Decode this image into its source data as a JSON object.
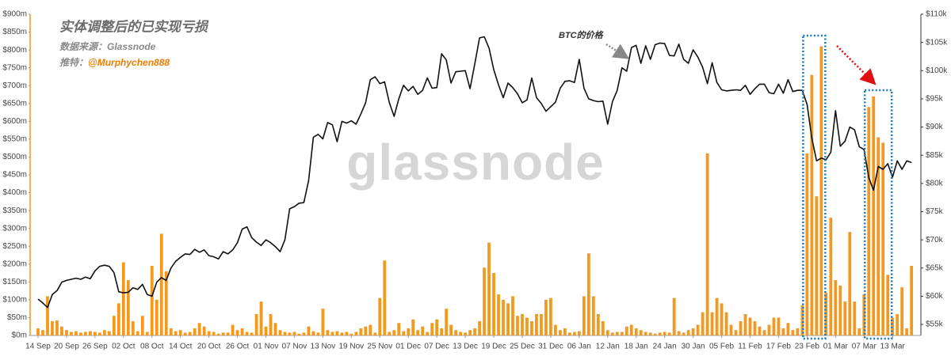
{
  "chart_data": {
    "type": "bar",
    "title": "实体调整后的已实现亏损",
    "annotations": {
      "source": "数据来源：Glassnode",
      "twitter_label": "推特：",
      "twitter_handle": "@Murphychen888",
      "price_label": "BTC的价格",
      "watermark": "glassnode"
    },
    "categories": [
      "14 Sep",
      null,
      null,
      null,
      null,
      null,
      "20 Sep",
      null,
      null,
      null,
      null,
      null,
      "26 Sep",
      null,
      null,
      null,
      null,
      null,
      "02 Oct",
      null,
      null,
      null,
      null,
      null,
      "08 Oct",
      null,
      null,
      null,
      null,
      null,
      "14 Oct",
      null,
      null,
      null,
      null,
      null,
      "20 Oct",
      null,
      null,
      null,
      null,
      null,
      "26 Oct",
      null,
      null,
      null,
      null,
      null,
      "01 Nov",
      null,
      null,
      null,
      null,
      null,
      "07 Nov",
      null,
      null,
      null,
      null,
      null,
      "13 Nov",
      null,
      null,
      null,
      null,
      null,
      "19 Nov",
      null,
      null,
      null,
      null,
      null,
      "25 Nov",
      null,
      null,
      null,
      null,
      null,
      "01 Dec",
      null,
      null,
      null,
      null,
      null,
      "07 Dec",
      null,
      null,
      null,
      null,
      null,
      "13 Dec",
      null,
      null,
      null,
      null,
      null,
      "19 Dec",
      null,
      null,
      null,
      null,
      null,
      "25 Dec",
      null,
      null,
      null,
      null,
      null,
      "31 Dec",
      null,
      null,
      null,
      null,
      null,
      "06 Jan",
      null,
      null,
      null,
      null,
      null,
      "12 Jan",
      null,
      null,
      null,
      null,
      null,
      "18 Jan",
      null,
      null,
      null,
      null,
      null,
      "24 Jan",
      null,
      null,
      null,
      null,
      null,
      "30 Jan",
      null,
      null,
      null,
      null,
      null,
      "05 Feb",
      null,
      null,
      null,
      null,
      null,
      "11 Feb",
      null,
      null,
      null,
      null,
      null,
      "17 Feb",
      null,
      null,
      null,
      null,
      null,
      "23 Feb",
      null,
      null,
      null,
      null,
      null,
      "01 Mar",
      null,
      null,
      null,
      null,
      null,
      "07 Mar",
      null,
      null,
      null,
      null,
      null,
      "13 Mar",
      null,
      null,
      null,
      null
    ],
    "series": [
      {
        "type": "bar",
        "color": "#f39a1e",
        "values": [
          20,
          15,
          110,
          40,
          42,
          25,
          15,
          10,
          12,
          8,
          10,
          12,
          10,
          8,
          15,
          12,
          55,
          90,
          205,
          155,
          40,
          12,
          55,
          10,
          195,
          100,
          285,
          180,
          20,
          12,
          15,
          8,
          10,
          20,
          35,
          25,
          12,
          10,
          5,
          8,
          8,
          30,
          15,
          20,
          10,
          8,
          60,
          95,
          25,
          60,
          35,
          15,
          10,
          8,
          10,
          5,
          8,
          25,
          12,
          8,
          75,
          15,
          10,
          12,
          8,
          10,
          5,
          10,
          20,
          25,
          30,
          8,
          105,
          210,
          10,
          15,
          35,
          12,
          20,
          45,
          15,
          25,
          10,
          35,
          45,
          20,
          75,
          30,
          15,
          10,
          8,
          15,
          20,
          40,
          190,
          260,
          175,
          115,
          100,
          90,
          110,
          55,
          60,
          50,
          40,
          60,
          60,
          100,
          105,
          30,
          15,
          20,
          8,
          10,
          12,
          110,
          230,
          110,
          60,
          40,
          15,
          8,
          10,
          10,
          25,
          30,
          20,
          15,
          10,
          8,
          5,
          8,
          10,
          8,
          105,
          12,
          8,
          15,
          20,
          30,
          65,
          510,
          65,
          105,
          90,
          65,
          30,
          15,
          40,
          60,
          50,
          40,
          25,
          15,
          30,
          50,
          50,
          20,
          35,
          15,
          20,
          85,
          510,
          730,
          390,
          810,
          120,
          330,
          155,
          140,
          95,
          290,
          95,
          20,
          115,
          640,
          670,
          555,
          540,
          170,
          50,
          60,
          135,
          20,
          195
        ]
      },
      {
        "type": "line",
        "color": "#111111",
        "axis": "y2",
        "values": [
          59.5,
          58.8,
          58.0,
          60.3,
          61.0,
          62.5,
          62.8,
          63.0,
          63.2,
          63.0,
          63.4,
          63.1,
          64.5,
          65.3,
          65.5,
          65.3,
          64.2,
          60.8,
          60.6,
          60.7,
          61.5,
          61.2,
          62.1,
          60.3,
          60.0,
          62.5,
          63.3,
          62.8,
          65.0,
          66.2,
          66.9,
          67.5,
          67.4,
          68.3,
          67.8,
          68.2,
          67.2,
          67.0,
          66.6,
          67.9,
          67.5,
          68.2,
          69.5,
          71.9,
          72.3,
          70.4,
          69.6,
          69.0,
          70.0,
          69.5,
          68.8,
          67.9,
          70.0,
          75.5,
          75.9,
          76.5,
          76.6,
          80.5,
          88.2,
          88.7,
          87.9,
          90.8,
          90.4,
          87.4,
          91.0,
          90.7,
          91.1,
          90.5,
          92.3,
          94.3,
          98.4,
          98.9,
          97.7,
          98.0,
          94.3,
          91.9,
          95.0,
          97.4,
          96.4,
          97.2,
          95.8,
          96.5,
          98.7,
          96.9,
          97.0,
          103.0,
          101.9,
          97.8,
          99.8,
          99.9,
          100.0,
          96.8,
          101.2,
          105.8,
          106.0,
          104.0,
          100.2,
          97.5,
          95.2,
          97.8,
          97.0,
          95.9,
          94.3,
          94.8,
          98.7,
          95.2,
          94.2,
          92.8,
          93.6,
          94.4,
          96.9,
          98.1,
          98.2,
          97.9,
          102.0,
          96.9,
          95.0,
          94.7,
          94.5,
          94.6,
          90.5,
          94.5,
          96.5,
          100.5,
          99.9,
          104.1,
          104.5,
          101.3,
          104.4,
          102.0,
          104.6,
          104.9,
          104.8,
          102.7,
          102.6,
          104.7,
          102.0,
          101.3,
          103.7,
          102.4,
          100.6,
          97.7,
          101.4,
          97.9,
          96.6,
          96.4,
          96.5,
          96.6,
          96.5,
          97.4,
          95.8,
          96.8,
          97.6,
          97.6,
          96.1,
          95.9,
          97.6,
          96.0,
          98.4,
          96.3,
          96.5,
          96.5,
          94.0,
          88.0,
          84.0,
          84.5,
          84.2,
          85.5,
          92.9,
          86.6,
          87.5,
          90.0,
          89.5,
          86.5,
          86.0,
          81.0,
          78.8,
          83.0,
          82.5,
          83.5,
          81.1,
          84.0,
          82.5,
          84.0,
          83.7
        ]
      }
    ],
    "ylim": [
      0,
      900
    ],
    "yticks": [
      {
        "value": 0,
        "label": "$0m"
      },
      {
        "value": 50,
        "label": "$50m"
      },
      {
        "value": 100,
        "label": "$100m"
      },
      {
        "value": 150,
        "label": "$150m"
      },
      {
        "value": 200,
        "label": "$200m"
      },
      {
        "value": 250,
        "label": "$250m"
      },
      {
        "value": 300,
        "label": "$300m"
      },
      {
        "value": 350,
        "label": "$350m"
      },
      {
        "value": 400,
        "label": "$400m"
      },
      {
        "value": 450,
        "label": "$450m"
      },
      {
        "value": 500,
        "label": "$500m"
      },
      {
        "value": 550,
        "label": "$550m"
      },
      {
        "value": 600,
        "label": "$600m"
      },
      {
        "value": 650,
        "label": "$650m"
      },
      {
        "value": 700,
        "label": "$700m"
      },
      {
        "value": 750,
        "label": "$750m"
      },
      {
        "value": 800,
        "label": "$800m"
      },
      {
        "value": 850,
        "label": "$850m"
      },
      {
        "value": 900,
        "label": "$900m"
      }
    ],
    "y2lim": [
      53.04,
      110
    ],
    "y2ticks": [
      {
        "value": 55,
        "label": "$55k"
      },
      {
        "value": 60,
        "label": "$60k"
      },
      {
        "value": 65,
        "label": "$65k"
      },
      {
        "value": 70,
        "label": "$70k"
      },
      {
        "value": 75,
        "label": "$75k"
      },
      {
        "value": 80,
        "label": "$80k"
      },
      {
        "value": 85,
        "label": "$85k"
      },
      {
        "value": 90,
        "label": "$90k"
      },
      {
        "value": 95,
        "label": "$95k"
      },
      {
        "value": 100,
        "label": "$100k"
      },
      {
        "value": 105,
        "label": "$105k"
      },
      {
        "value": 110,
        "label": "$110k"
      }
    ],
    "grid": false
  }
}
